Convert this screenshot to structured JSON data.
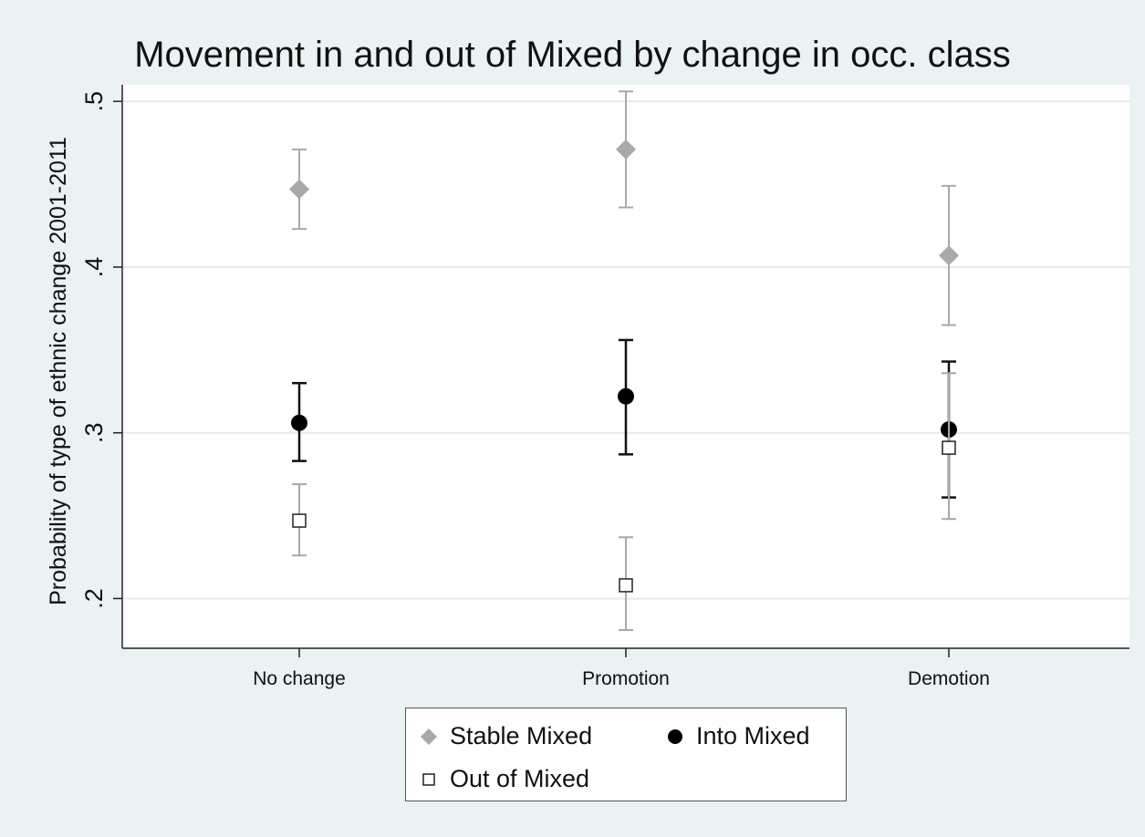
{
  "chart_data": {
    "type": "scatter",
    "title": "Movement in and out of Mixed by change in occ. class",
    "xlabel": "",
    "ylabel": "Probability of type of ethnic change 2001-2011",
    "categories": [
      "No change",
      "Promotion",
      "Demotion"
    ],
    "ylim": [
      0.17,
      0.51
    ],
    "yticks": [
      0.2,
      0.3,
      0.4,
      0.5
    ],
    "ytick_labels": [
      ".2",
      ".3",
      ".4",
      ".5"
    ],
    "grid": true,
    "legend_position": "bottom",
    "series": [
      {
        "name": "Stable Mixed",
        "marker": "diamond",
        "color": "#a9a9a9",
        "values": [
          0.447,
          0.471,
          0.407
        ],
        "ci_low": [
          0.423,
          0.436,
          0.365
        ],
        "ci_high": [
          0.471,
          0.506,
          0.449
        ]
      },
      {
        "name": "Into Mixed",
        "marker": "filled-circle",
        "color": "#000000",
        "values": [
          0.306,
          0.322,
          0.302
        ],
        "ci_low": [
          0.283,
          0.287,
          0.261
        ],
        "ci_high": [
          0.33,
          0.356,
          0.343
        ]
      },
      {
        "name": "Out of Mixed",
        "marker": "hollow-square",
        "color": "#888888",
        "values": [
          0.247,
          0.208,
          0.291
        ],
        "ci_low": [
          0.226,
          0.181,
          0.248
        ],
        "ci_high": [
          0.269,
          0.237,
          0.336
        ]
      }
    ]
  }
}
